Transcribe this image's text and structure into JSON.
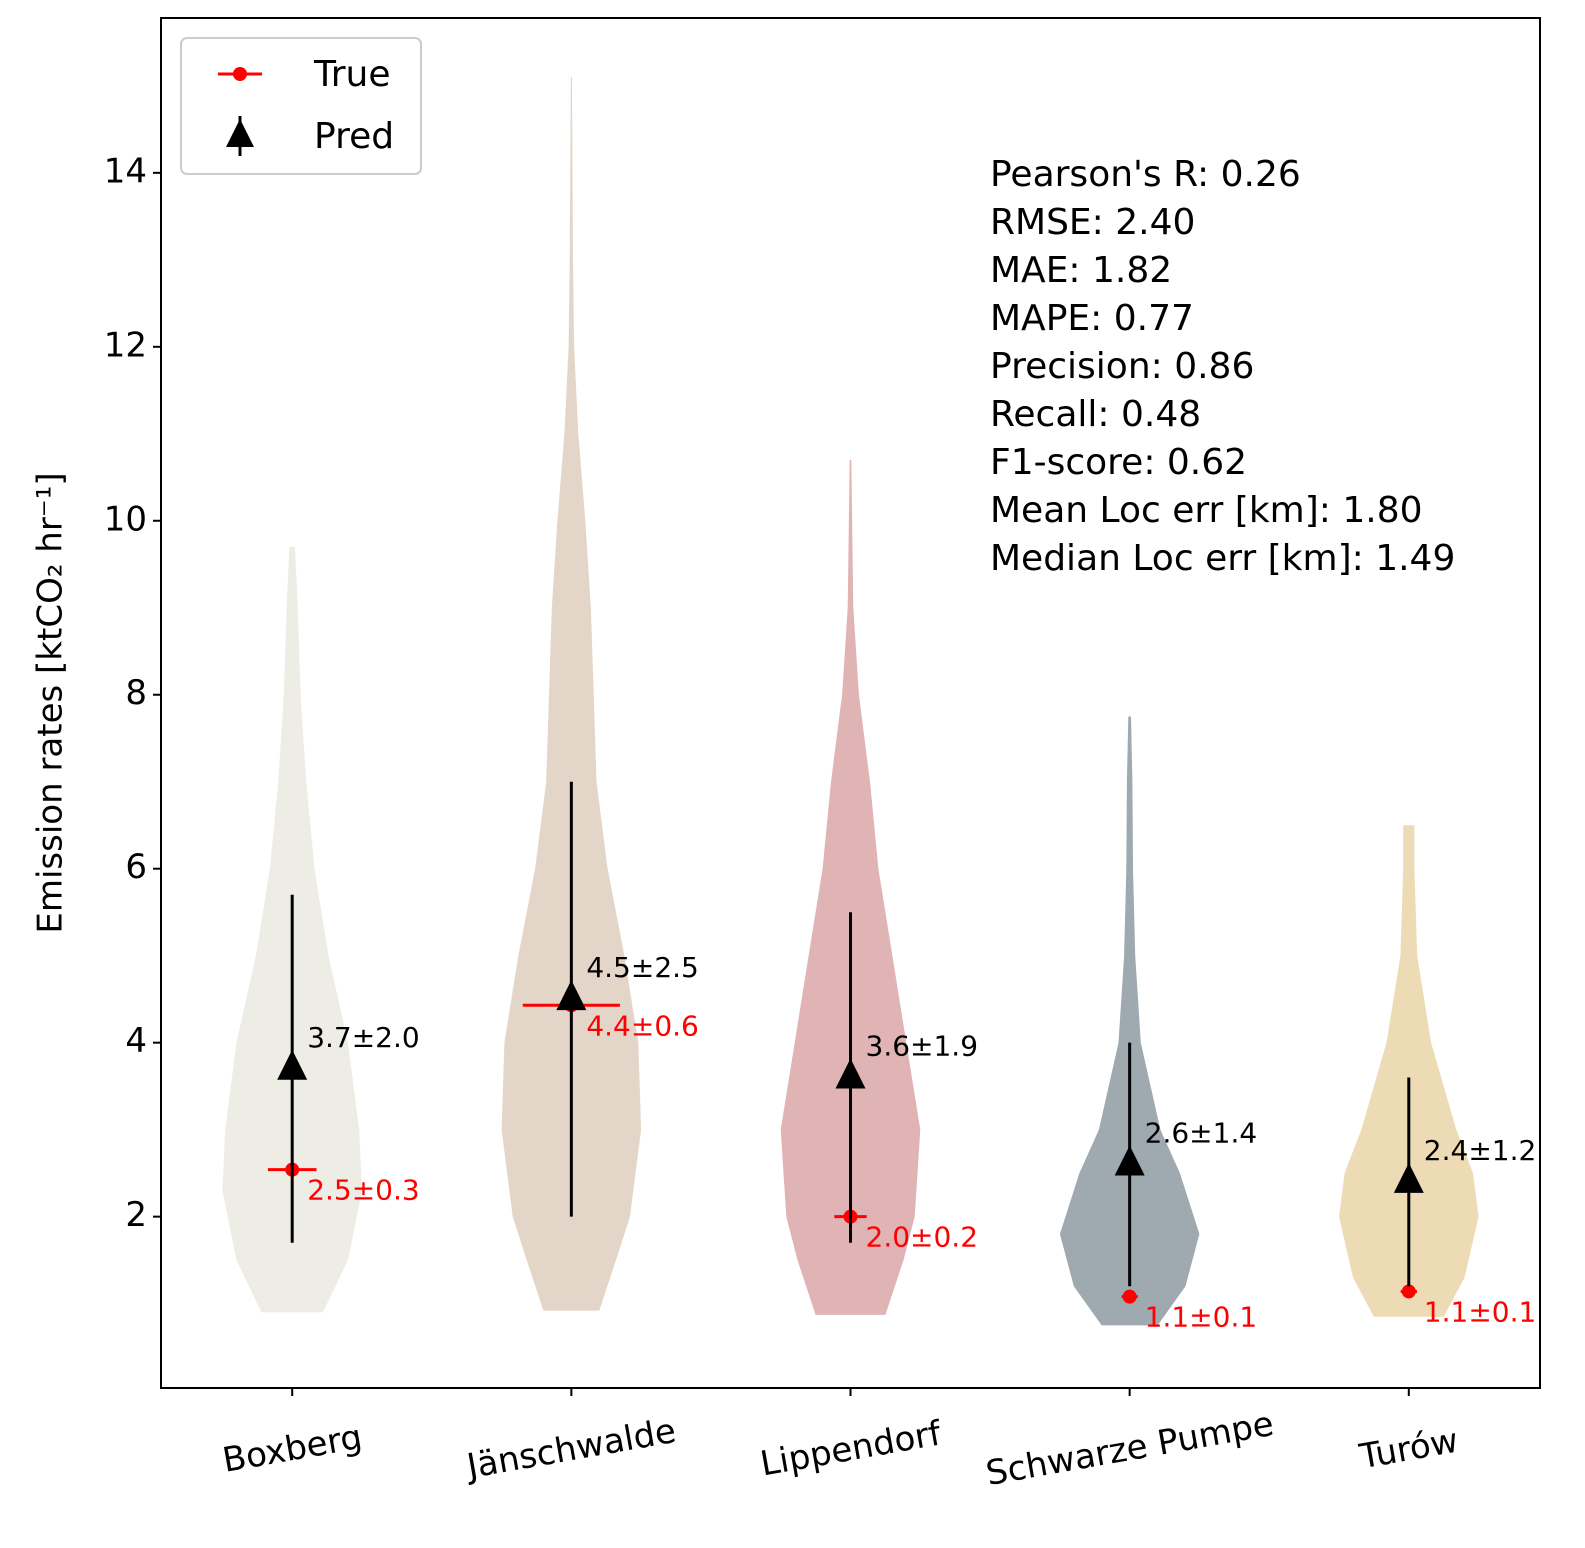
{
  "chart_data": {
    "type": "violin",
    "y_label": "Emission rates [ktCO₂ hr⁻¹]",
    "categories": [
      "Boxberg",
      "Jänschwalde",
      "Lippendorf",
      "Schwarze Pumpe",
      "Turów"
    ],
    "colors": [
      "#eeede5",
      "#e3d6c8",
      "#e0b3b4",
      "#9ea9b0",
      "#eddbb6"
    ],
    "violins": [
      {
        "y": [
          0.9,
          1.5,
          2.3,
          3,
          4,
          5,
          6,
          7,
          8,
          9,
          9.7
        ],
        "half_width": [
          0.11,
          0.2,
          0.25,
          0.24,
          0.2,
          0.13,
          0.08,
          0.05,
          0.03,
          0.02,
          0.01
        ]
      },
      {
        "y": [
          0.92,
          1.5,
          2,
          3,
          4,
          5,
          6,
          7,
          8,
          9,
          10,
          11,
          12,
          13,
          15.1
        ],
        "half_width": [
          0.1,
          0.16,
          0.21,
          0.25,
          0.24,
          0.19,
          0.13,
          0.09,
          0.08,
          0.07,
          0.05,
          0.025,
          0.01,
          0.006,
          0.002
        ]
      },
      {
        "y": [
          0.87,
          1.5,
          2,
          3,
          4,
          5,
          6,
          7,
          8,
          9,
          10.7
        ],
        "half_width": [
          0.125,
          0.19,
          0.23,
          0.25,
          0.2,
          0.15,
          0.1,
          0.07,
          0.03,
          0.01,
          0.003
        ]
      },
      {
        "y": [
          0.75,
          1.2,
          1.8,
          2.5,
          3,
          4,
          5,
          6,
          7,
          7.75
        ],
        "half_width": [
          0.1,
          0.2,
          0.25,
          0.18,
          0.11,
          0.04,
          0.02,
          0.012,
          0.01,
          0.005
        ]
      },
      {
        "y": [
          0.85,
          1.3,
          2,
          2.5,
          3,
          4,
          5,
          6,
          6.5
        ],
        "half_width": [
          0.125,
          0.2,
          0.25,
          0.23,
          0.17,
          0.08,
          0.03,
          0.02,
          0.02
        ]
      }
    ],
    "series": [
      {
        "name": "True",
        "color": "#ff0000",
        "marker": "circle",
        "values": [
          2.54,
          4.43,
          2.0,
          1.08,
          1.14
        ],
        "errors": [
          0.3,
          0.6,
          0.2,
          0.1,
          0.1
        ],
        "value_labels": [
          "2.5±0.3",
          "4.4±0.6",
          "2.0±0.2",
          "1.1±0.1",
          "1.1±0.1"
        ]
      },
      {
        "name": "Pred",
        "color": "#000000",
        "marker": "triangle",
        "values": [
          3.7,
          4.5,
          3.6,
          2.6,
          2.4
        ],
        "errors": [
          2.0,
          2.5,
          1.9,
          1.4,
          1.2
        ],
        "value_labels": [
          "3.7±2.0",
          "4.5±2.5",
          "3.6±1.9",
          "2.6±1.4",
          "2.4±1.2"
        ]
      }
    ],
    "stats": [
      "Pearson's R: 0.26",
      "RMSE: 2.40",
      "MAE: 1.82",
      "MAPE: 0.77",
      "Precision: 0.86",
      "Recall: 0.48",
      "F1-score: 0.62",
      "Mean Loc err [km]: 1.80",
      "Median Loc err [km]: 1.49"
    ],
    "ylim": [
      0.03,
      15.78
    ],
    "yticks": [
      2,
      4,
      6,
      8,
      10,
      12,
      14
    ],
    "legend": "upper left"
  }
}
